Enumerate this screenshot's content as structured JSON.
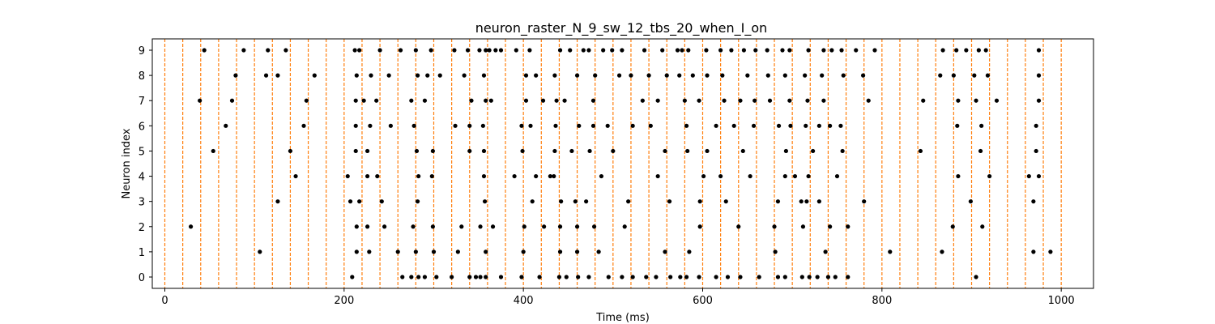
{
  "chart_data": {
    "type": "scatter",
    "title": "neuron_raster_N_9_sw_12_tbs_20_when_I_on",
    "xlabel": "Time (ms)",
    "ylabel": "Neuron index",
    "xlim": [
      -14,
      1036
    ],
    "ylim": [
      -0.45,
      9.45
    ],
    "x_ticks": [
      0,
      200,
      400,
      600,
      800,
      1000
    ],
    "y_ticks": [
      0,
      1,
      2,
      3,
      4,
      5,
      6,
      7,
      8,
      9
    ],
    "grid": false,
    "legend": "none",
    "colors": {
      "spikes": "#000000",
      "stimulus_lines": "#ff7f0e"
    },
    "stimulus_line_times": [
      0,
      20,
      40,
      60,
      80,
      100,
      120,
      140,
      160,
      180,
      200,
      220,
      240,
      260,
      280,
      300,
      320,
      340,
      360,
      380,
      400,
      420,
      440,
      460,
      480,
      500,
      520,
      540,
      560,
      580,
      600,
      620,
      640,
      660,
      680,
      700,
      720,
      740,
      760,
      780,
      800,
      820,
      840,
      860,
      880,
      900,
      920,
      940,
      960,
      980,
      1000
    ],
    "spikes": [
      {
        "neuron": 0,
        "times": [
          209,
          265,
          275,
          283,
          290,
          303,
          320,
          340,
          347,
          352,
          358,
          375,
          398,
          418,
          440,
          448,
          461,
          473,
          495,
          510,
          522,
          537,
          548,
          564,
          575,
          582,
          596,
          615,
          628,
          642,
          663,
          684,
          692,
          711,
          719,
          728,
          740,
          748,
          762,
          905
        ]
      },
      {
        "neuron": 1,
        "times": [
          106,
          214,
          228,
          260,
          280,
          300,
          327,
          358,
          400,
          441,
          460,
          484,
          558,
          585,
          681,
          737,
          809,
          867,
          969,
          988
        ]
      },
      {
        "neuron": 2,
        "times": [
          29,
          214,
          226,
          245,
          277,
          299,
          331,
          352,
          366,
          401,
          423,
          441,
          460,
          479,
          513,
          597,
          640,
          680,
          712,
          742,
          762,
          879,
          912
        ]
      },
      {
        "neuron": 3,
        "times": [
          126,
          207,
          217,
          242,
          282,
          357,
          410,
          442,
          458,
          470,
          517,
          563,
          597,
          626,
          684,
          710,
          716,
          730,
          780,
          899,
          969
        ]
      },
      {
        "neuron": 4,
        "times": [
          146,
          204,
          226,
          237,
          283,
          298,
          356,
          390,
          414,
          430,
          434,
          487,
          550,
          601,
          620,
          653,
          692,
          703,
          718,
          750,
          885,
          920,
          964,
          975
        ]
      },
      {
        "neuron": 5,
        "times": [
          54,
          140,
          213,
          226,
          281,
          299,
          340,
          356,
          399,
          435,
          454,
          474,
          500,
          558,
          583,
          605,
          645,
          693,
          723,
          756,
          843,
          910,
          972
        ]
      },
      {
        "neuron": 6,
        "times": [
          68,
          155,
          213,
          229,
          252,
          278,
          324,
          340,
          355,
          398,
          408,
          436,
          462,
          478,
          494,
          522,
          542,
          582,
          615,
          635,
          657,
          685,
          698,
          715,
          730,
          742,
          754,
          884,
          911,
          972
        ]
      },
      {
        "neuron": 7,
        "times": [
          39,
          75,
          158,
          213,
          222,
          236,
          275,
          290,
          342,
          358,
          364,
          403,
          422,
          437,
          446,
          478,
          533,
          550,
          580,
          596,
          624,
          642,
          658,
          675,
          697,
          717,
          735,
          785,
          846,
          885,
          905,
          928,
          975
        ]
      },
      {
        "neuron": 8,
        "times": [
          79,
          113,
          126,
          167,
          214,
          230,
          250,
          282,
          293,
          307,
          334,
          356,
          403,
          414,
          435,
          460,
          480,
          507,
          520,
          540,
          560,
          574,
          589,
          605,
          622,
          650,
          673,
          692,
          714,
          733,
          757,
          779,
          865,
          880,
          903,
          918,
          975
        ]
      },
      {
        "neuron": 9,
        "times": [
          44,
          88,
          115,
          135,
          212,
          217,
          240,
          263,
          280,
          297,
          323,
          338,
          351,
          358,
          362,
          369,
          375,
          392,
          407,
          441,
          452,
          467,
          473,
          489,
          499,
          510,
          535,
          555,
          572,
          577,
          584,
          604,
          620,
          632,
          646,
          659,
          672,
          689,
          697,
          718,
          735,
          744,
          755,
          771,
          792,
          868,
          883,
          894,
          908,
          916,
          975
        ]
      }
    ]
  }
}
